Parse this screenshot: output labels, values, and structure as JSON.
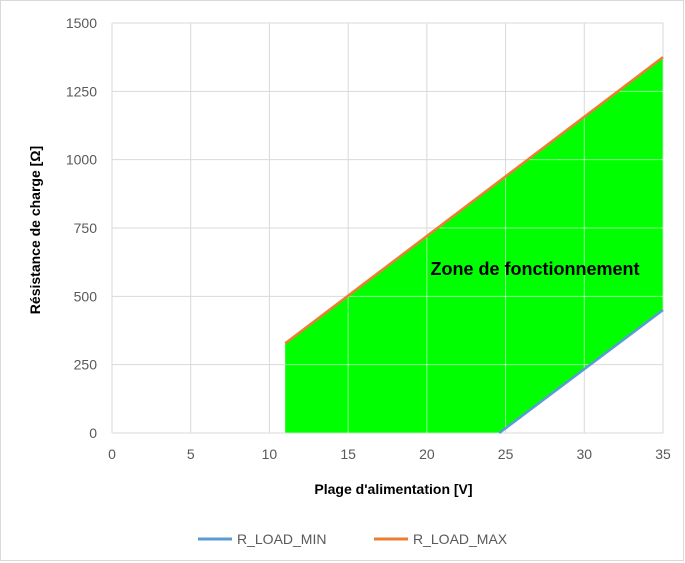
{
  "chart_data": {
    "type": "area",
    "xlabel": "Plage d'alimentation [V]",
    "ylabel": "Résistance de charge [Ω]",
    "xlim": [
      0,
      35
    ],
    "ylim": [
      0,
      1500
    ],
    "xticks": [
      "0",
      "5",
      "10",
      "15",
      "20",
      "25",
      "30",
      "35"
    ],
    "yticks": [
      "0",
      "250",
      "500",
      "750",
      "1000",
      "1250",
      "1500"
    ],
    "grid": true,
    "legend": "bottom",
    "annotation": "Zone de fonctionnement",
    "fill_color": "#00ff00",
    "series": [
      {
        "name": "R_LOAD_MIN",
        "color": "#5b9bd5",
        "x": [
          24.6,
          35
        ],
        "y": [
          0,
          450
        ]
      },
      {
        "name": "R_LOAD_MAX",
        "color": "#ed7d31",
        "x": [
          11,
          35
        ],
        "y": [
          328,
          1375
        ]
      }
    ],
    "region": {
      "x": [
        11,
        24.6,
        35,
        35,
        11
      ],
      "y": [
        0,
        0,
        450,
        1375,
        328
      ]
    }
  }
}
